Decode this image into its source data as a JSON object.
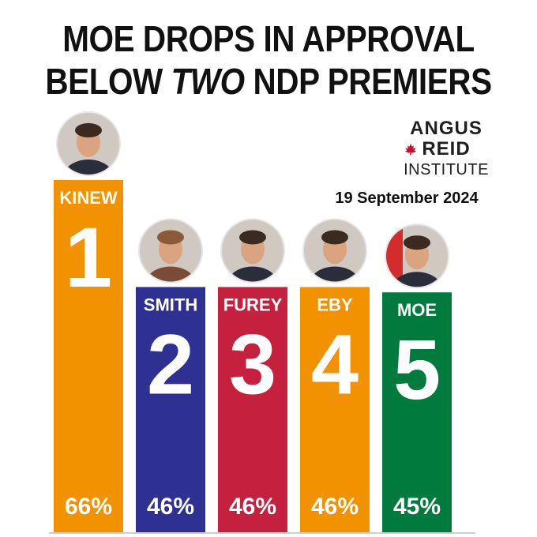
{
  "title": {
    "line1": "MOE DROPS IN APPROVAL",
    "line2_prefix": "BELOW ",
    "line2_emph": "TWO",
    "line2_suffix": " NDP PREMIERS"
  },
  "brand": {
    "line1": "ANGUS",
    "line2": "REID",
    "line3": "INSTITUTE",
    "leaf_icon": "maple-leaf-icon",
    "leaf_color": "#c8102e"
  },
  "date": "19 September 2024",
  "chart_data": {
    "type": "bar",
    "title": "MOE DROPS IN APPROVAL BELOW TWO NDP PREMIERS",
    "xlabel": "",
    "ylabel": "",
    "categories": [
      "KINEW",
      "SMITH",
      "FUREY",
      "EBY",
      "MOE"
    ],
    "ranks": [
      "1",
      "2",
      "3",
      "4",
      "5"
    ],
    "values": [
      66,
      46,
      46,
      46,
      45
    ],
    "value_labels": [
      "66%",
      "46%",
      "46%",
      "46%",
      "45%"
    ],
    "colors": [
      "#f39200",
      "#2e3192",
      "#c5203e",
      "#f39200",
      "#007a3d"
    ],
    "photo_icons": [
      "kinew-portrait",
      "smith-portrait",
      "furey-portrait",
      "eby-portrait",
      "moe-portrait"
    ],
    "grid": false,
    "legend": "none"
  }
}
